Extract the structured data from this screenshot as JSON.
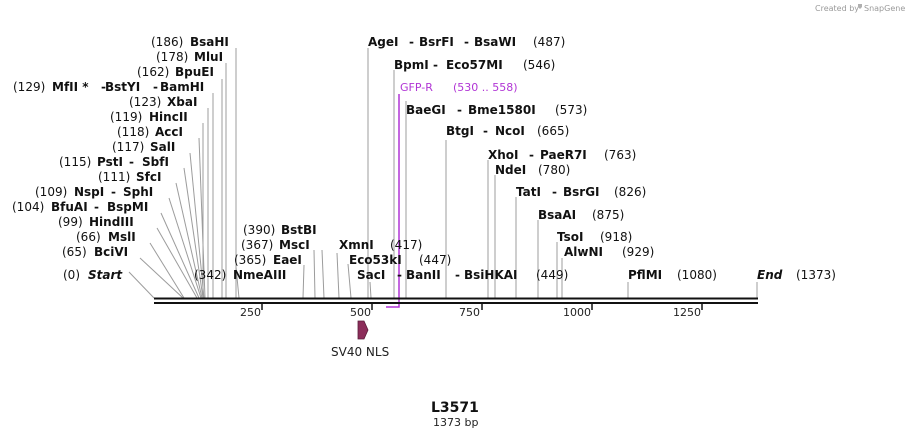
{
  "credit": {
    "text": "Created by",
    "brand": "SnapGene"
  },
  "plasmid": {
    "name": "L3571",
    "length_label": "1373 bp",
    "length": 1373
  },
  "colors": {
    "backbone": "#111111",
    "feature_line": "#9c9c9c",
    "primer": "#b135d5",
    "nls": "#8c2d5a"
  },
  "axis_ticks": [
    "250",
    "500",
    "750",
    "1000",
    "1250"
  ],
  "features": {
    "nls_label": "SV40 NLS"
  },
  "primer": {
    "name": "GFP-R",
    "range": "(530 .. 558)"
  },
  "sites": [
    {
      "pos": "(186)",
      "names": [
        "BsaHI"
      ]
    },
    {
      "pos": "(178)",
      "names": [
        "MluI"
      ]
    },
    {
      "pos": "(162)",
      "names": [
        "BpuEI"
      ]
    },
    {
      "pos": "(129)",
      "names": [
        "MfII *",
        "BstYI",
        "BamHI"
      ]
    },
    {
      "pos": "(123)",
      "names": [
        "XbaI"
      ]
    },
    {
      "pos": "(119)",
      "names": [
        "HincII"
      ]
    },
    {
      "pos": "(118)",
      "names": [
        "AccI"
      ]
    },
    {
      "pos": "(117)",
      "names": [
        "SalI"
      ]
    },
    {
      "pos": "(115)",
      "names": [
        "PstI",
        "SbfI"
      ]
    },
    {
      "pos": "(111)",
      "names": [
        "SfcI"
      ]
    },
    {
      "pos": "(109)",
      "names": [
        "NspI",
        "SphI"
      ]
    },
    {
      "pos": "(104)",
      "names": [
        "BfuAI",
        "BspMI"
      ]
    },
    {
      "pos": "(99)",
      "names": [
        "HindIII"
      ]
    },
    {
      "pos": "(66)",
      "names": [
        "MslI"
      ]
    },
    {
      "pos": "(65)",
      "names": [
        "BciVI"
      ]
    },
    {
      "pos": "(0)",
      "names": [
        "Start"
      ]
    },
    {
      "pos": "(342)",
      "names": [
        "NmeAIII"
      ]
    },
    {
      "pos": "(390)",
      "names": [
        "BstBI"
      ]
    },
    {
      "pos": "(367)",
      "names": [
        "MscI"
      ]
    },
    {
      "pos": "(365)",
      "names": [
        "EaeI"
      ]
    },
    {
      "pos": "(417)",
      "names": [
        "XmnI"
      ]
    },
    {
      "pos": "(447)",
      "names": [
        "Eco53kI"
      ]
    },
    {
      "pos": "(449)",
      "names": [
        "SacI",
        "BanII",
        "BsiHKAI"
      ]
    },
    {
      "pos": "(487)",
      "names": [
        "AgeI",
        "BsrFI",
        "BsaWI"
      ]
    },
    {
      "pos": "(546)",
      "names": [
        "BpmI",
        "Eco57MI"
      ]
    },
    {
      "pos": "(573)",
      "names": [
        "BaeGI",
        "Bme1580I"
      ]
    },
    {
      "pos": "(665)",
      "names": [
        "BtgI",
        "NcoI"
      ]
    },
    {
      "pos": "(763)",
      "names": [
        "XhoI",
        "PaeR7I"
      ]
    },
    {
      "pos": "(780)",
      "names": [
        "NdeI"
      ]
    },
    {
      "pos": "(826)",
      "names": [
        "TatI",
        "BsrGI"
      ]
    },
    {
      "pos": "(875)",
      "names": [
        "BsaAI"
      ]
    },
    {
      "pos": "(918)",
      "names": [
        "TsoI"
      ]
    },
    {
      "pos": "(929)",
      "names": [
        "AlwNI"
      ]
    },
    {
      "pos": "(1080)",
      "names": [
        "PflMI"
      ]
    },
    {
      "pos": "(1373)",
      "names": [
        "End"
      ]
    }
  ]
}
